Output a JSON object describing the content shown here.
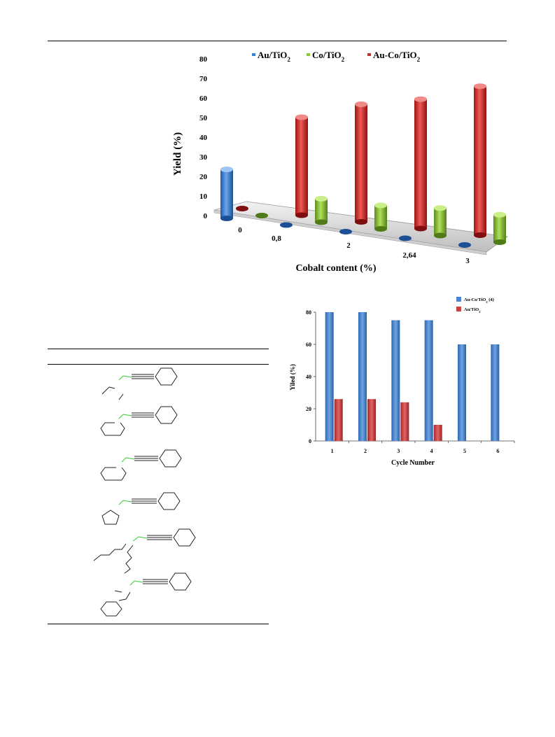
{
  "chart_data": [
    {
      "type": "bar",
      "title": "",
      "xlabel": "Cobalt content (%)",
      "ylabel": "Yield (%)",
      "ylim": [
        0,
        80
      ],
      "yticks": [
        0,
        10,
        20,
        30,
        40,
        50,
        60,
        70,
        80
      ],
      "categories": [
        "0",
        "0,8",
        "2",
        "2,64",
        "3"
      ],
      "legend_position": "top",
      "series": [
        {
          "name": "Au/TiO",
          "sub": "2",
          "color": "#3b7fd0",
          "values": [
            25,
            0,
            0,
            0,
            0
          ]
        },
        {
          "name": "Co/TiO",
          "sub": "2",
          "color": "#8cc43a",
          "values": [
            0,
            12,
            12,
            14,
            14
          ]
        },
        {
          "name": "Au-Co/TiO",
          "sub": "2",
          "color": "#d42a28",
          "values": [
            0,
            50,
            60,
            66,
            76
          ]
        }
      ]
    },
    {
      "type": "bar",
      "title": "",
      "xlabel": "Cycle Number",
      "ylabel": "Yiled (%)",
      "ylim": [
        0,
        80
      ],
      "yticks": [
        0,
        20,
        40,
        60,
        80
      ],
      "categories": [
        "1",
        "2",
        "3",
        "4",
        "5",
        "6"
      ],
      "legend_position": "top-right",
      "series": [
        {
          "name": "Au-Co/TiO",
          "sub": "2",
          "suffix": " (4)",
          "color": "#4a86cf",
          "values": [
            80,
            80,
            75,
            75,
            60,
            60
          ]
        },
        {
          "name": "Au/TiO",
          "sub": "2",
          "suffix": "",
          "color": "#cc4040",
          "values": [
            26,
            26,
            24,
            10,
            null,
            null
          ]
        }
      ]
    }
  ]
}
